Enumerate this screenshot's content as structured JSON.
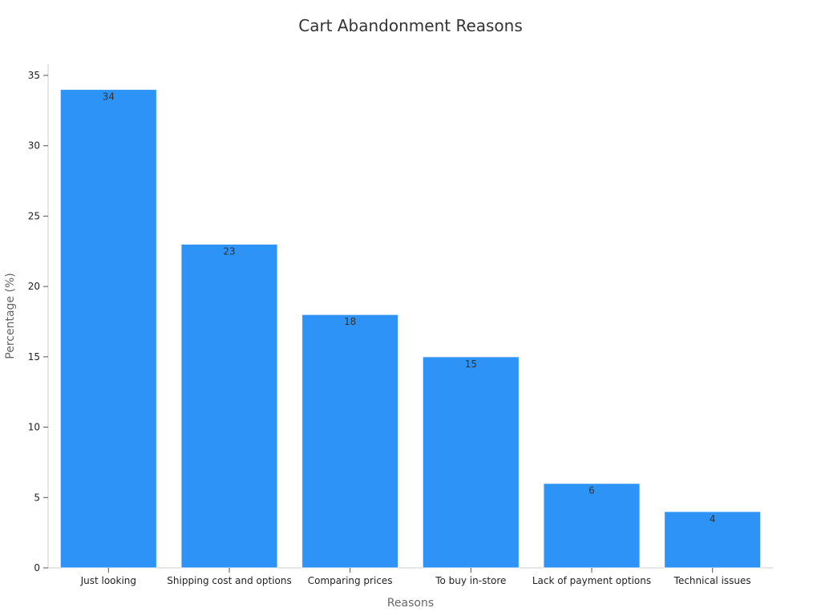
{
  "chart_data": {
    "type": "bar",
    "title": "Cart Abandonment Reasons",
    "xlabel": "Reasons",
    "ylabel": "Percentage (%)",
    "categories": [
      "Just looking",
      "Shipping cost and options",
      "Comparing prices",
      "To buy in-store",
      "Lack of payment options",
      "Technical issues"
    ],
    "values": [
      34,
      23,
      18,
      15,
      6,
      4
    ],
    "ylim": [
      0,
      35
    ],
    "yticks": [
      0,
      5,
      10,
      15,
      20,
      25,
      30,
      35
    ],
    "grid": false,
    "legend": "none",
    "colors": {
      "bar": "#2e93f6",
      "text": "#333333",
      "axis": "#cccccc"
    }
  }
}
